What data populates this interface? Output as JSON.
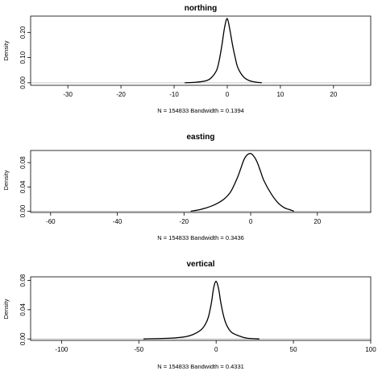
{
  "chart_data": [
    {
      "type": "line",
      "title": "northing",
      "xlabel": "N = 154833   Bandwidth = 0.1394",
      "ylabel": "Density",
      "xlim": [
        -37,
        27
      ],
      "ylim": [
        -0.01,
        0.265
      ],
      "xticks": [
        "-30",
        "-20",
        "-10",
        "0",
        "10",
        "20"
      ],
      "xtick_values": [
        -30,
        -20,
        -10,
        0,
        10,
        20
      ],
      "yticks": [
        "0.00",
        "0.10",
        "0.20"
      ],
      "ytick_values": [
        0,
        0.1,
        0.2
      ],
      "x": [
        -8,
        -6,
        -4,
        -3,
        -2,
        -1.5,
        -1,
        -0.5,
        0,
        0.5,
        1,
        1.5,
        2,
        3,
        4,
        5,
        6.5
      ],
      "y": [
        0.0,
        0.002,
        0.008,
        0.02,
        0.05,
        0.09,
        0.15,
        0.22,
        0.255,
        0.21,
        0.15,
        0.1,
        0.06,
        0.025,
        0.01,
        0.004,
        0.0
      ]
    },
    {
      "type": "line",
      "title": "easting",
      "xlabel": "N = 154833   Bandwidth = 0.3436",
      "ylabel": "Density",
      "xlim": [
        -66,
        36
      ],
      "ylim": [
        -0.002,
        0.1
      ],
      "xticks": [
        "-60",
        "-40",
        "-20",
        "0",
        "20"
      ],
      "xtick_values": [
        -60,
        -40,
        -20,
        0,
        20
      ],
      "yticks": [
        "0.00",
        "0.04",
        "0.08"
      ],
      "ytick_values": [
        0,
        0.04,
        0.08
      ],
      "x": [
        -18,
        -15,
        -12,
        -10,
        -8,
        -6,
        -4,
        -3,
        -2,
        -1,
        0,
        1,
        2,
        3,
        4,
        6,
        8,
        10,
        12,
        13
      ],
      "y": [
        0.0,
        0.003,
        0.008,
        0.013,
        0.02,
        0.032,
        0.055,
        0.07,
        0.085,
        0.093,
        0.095,
        0.09,
        0.08,
        0.065,
        0.05,
        0.03,
        0.015,
        0.006,
        0.002,
        0.0
      ]
    },
    {
      "type": "line",
      "title": "vertical",
      "xlabel": "N = 154833   Bandwidth = 0.4331",
      "ylabel": "Density",
      "xlim": [
        -120,
        100
      ],
      "ylim": [
        -0.002,
        0.085
      ],
      "xticks": [
        "-100",
        "-50",
        "0",
        "50",
        "100"
      ],
      "xtick_values": [
        -100,
        -50,
        0,
        50,
        100
      ],
      "yticks": [
        "0.00",
        "0.04",
        "0.08"
      ],
      "ytick_values": [
        0,
        0.04,
        0.08
      ],
      "x": [
        -47,
        -30,
        -20,
        -15,
        -10,
        -7,
        -5,
        -3,
        -2,
        -1,
        0,
        1,
        2,
        3,
        5,
        7,
        10,
        15,
        20,
        28
      ],
      "y": [
        0.0,
        0.001,
        0.003,
        0.006,
        0.012,
        0.02,
        0.03,
        0.05,
        0.065,
        0.075,
        0.079,
        0.074,
        0.064,
        0.05,
        0.03,
        0.018,
        0.009,
        0.004,
        0.001,
        0.0
      ]
    }
  ]
}
